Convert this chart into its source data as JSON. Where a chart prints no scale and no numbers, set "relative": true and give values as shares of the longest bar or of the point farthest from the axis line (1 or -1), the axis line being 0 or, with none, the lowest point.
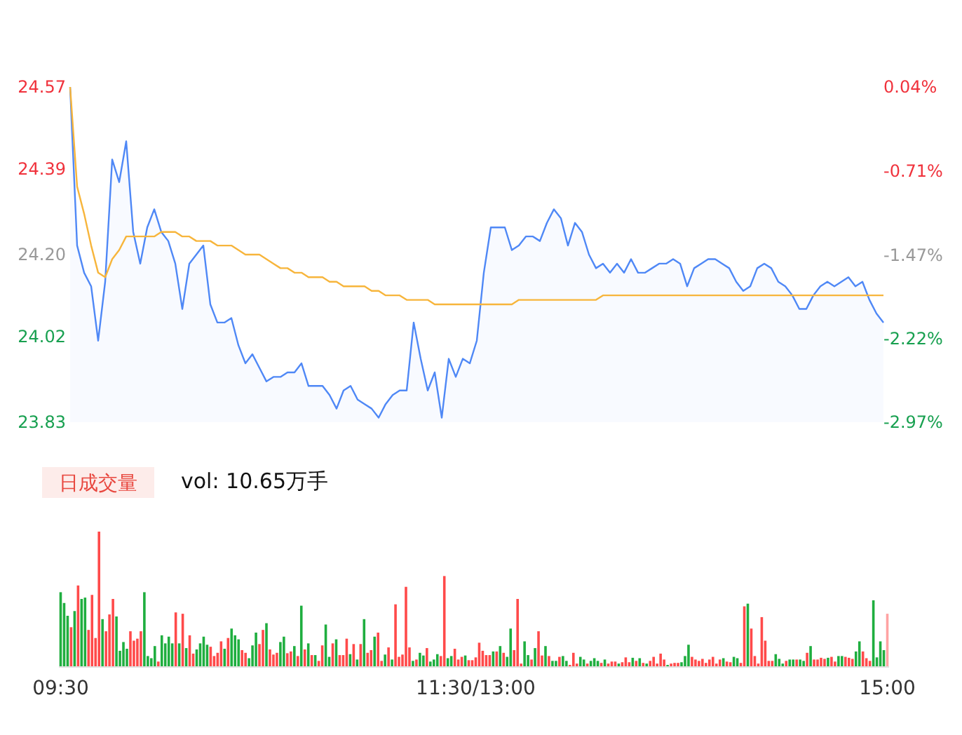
{
  "chart_data": [
    {
      "type": "line",
      "tick_labels": "y",
      "ylim": [
        23.83,
        24.57
      ],
      "yticks": [
        23.83,
        24.02,
        {
          "value": 24.2,
          "label": "24.20"
        },
        24.39,
        24.57
      ],
      "y2lim": [
        -2.97,
        0.04
      ],
      "y2ticks": [
        {
          "value": -2.97,
          "label": "-2.97%"
        },
        {
          "value": -2.22,
          "label": "-2.22%"
        },
        {
          "value": -1.47,
          "label": "-1.47%"
        },
        {
          "value": -0.71,
          "label": "-0.71%"
        },
        {
          "value": 0.04,
          "label": "0.04%"
        }
      ],
      "categories": [
        null,
        null,
        null,
        null,
        null,
        null,
        null,
        null,
        null,
        null,
        null,
        null,
        null,
        null,
        null,
        null,
        null,
        null,
        null,
        null,
        null,
        null,
        null,
        null,
        null,
        null,
        null,
        null,
        null,
        null,
        null,
        null,
        null,
        null,
        null,
        null,
        null,
        null,
        null,
        null,
        null,
        null,
        null,
        null,
        null,
        null,
        null,
        null,
        null,
        null,
        null,
        null,
        null,
        null,
        null,
        null,
        null,
        null,
        null,
        null,
        null,
        null,
        null,
        null,
        null,
        null,
        null,
        null,
        null,
        null,
        null,
        null,
        null,
        null,
        null,
        null,
        null,
        null,
        null,
        null,
        null,
        null,
        null,
        null,
        null,
        null,
        null,
        null,
        null,
        null,
        null,
        null,
        null,
        null,
        null,
        null,
        null,
        null,
        null,
        null,
        null,
        null,
        null,
        null,
        null,
        null,
        null,
        null,
        null,
        null,
        null,
        null,
        null,
        null,
        null,
        null,
        null
      ],
      "series": [
        {
          "type": "area",
          "color": "#4f88f6",
          "values": [
            24.57,
            24.22,
            24.16,
            24.13,
            24.01,
            24.14,
            24.41,
            24.36,
            24.45,
            24.25,
            24.18,
            24.26,
            24.3,
            24.25,
            24.23,
            24.18,
            24.08,
            24.18,
            24.2,
            24.22,
            24.09,
            24.05,
            24.05,
            24.06,
            24.0,
            23.96,
            23.98,
            23.95,
            23.92,
            23.93,
            23.93,
            23.94,
            23.94,
            23.96,
            23.91,
            23.91,
            23.91,
            23.89,
            23.86,
            23.9,
            23.91,
            23.88,
            23.87,
            23.86,
            23.84,
            23.87,
            23.89,
            23.9,
            23.9,
            24.05,
            23.97,
            23.9,
            23.94,
            23.84,
            23.97,
            23.93,
            23.97,
            23.96,
            24.01,
            24.16,
            24.26,
            24.26,
            24.26,
            24.21,
            24.22,
            24.24,
            24.24,
            24.23,
            24.27,
            24.3,
            24.28,
            24.22,
            24.27,
            24.25,
            24.2,
            24.17,
            24.18,
            24.16,
            24.18,
            24.16,
            24.19,
            24.16,
            24.16,
            24.17,
            24.18,
            24.18,
            24.19,
            24.18,
            24.13,
            24.17,
            24.18,
            24.19,
            24.19,
            24.18,
            24.17,
            24.14,
            24.12,
            24.13,
            24.17,
            24.18,
            24.17,
            24.14,
            24.13,
            24.11,
            24.08,
            24.08,
            24.11,
            24.13,
            24.14,
            24.13,
            24.14,
            24.15,
            24.13,
            24.14,
            24.1,
            24.07,
            24.05
          ]
        },
        {
          "type": "line",
          "color": "#f7b53b",
          "values": [
            24.57,
            24.35,
            24.29,
            24.22,
            24.16,
            24.15,
            24.19,
            24.21,
            24.24,
            24.24,
            24.24,
            24.24,
            24.24,
            24.25,
            24.25,
            24.25,
            24.24,
            24.24,
            24.23,
            24.23,
            24.23,
            24.22,
            24.22,
            24.22,
            24.21,
            24.2,
            24.2,
            24.2,
            24.19,
            24.18,
            24.17,
            24.17,
            24.16,
            24.16,
            24.15,
            24.15,
            24.15,
            24.14,
            24.14,
            24.13,
            24.13,
            24.13,
            24.13,
            24.12,
            24.12,
            24.11,
            24.11,
            24.11,
            24.1,
            24.1,
            24.1,
            24.1,
            24.09,
            24.09,
            24.09,
            24.09,
            24.09,
            24.09,
            24.09,
            24.09,
            24.09,
            24.09,
            24.09,
            24.09,
            24.1,
            24.1,
            24.1,
            24.1,
            24.1,
            24.1,
            24.1,
            24.1,
            24.1,
            24.1,
            24.1,
            24.1,
            24.11,
            24.11,
            24.11,
            24.11,
            24.11,
            24.11,
            24.11,
            24.11,
            24.11,
            24.11,
            24.11,
            24.11,
            24.11,
            24.11,
            24.11,
            24.11,
            24.11,
            24.11,
            24.11,
            24.11,
            24.11,
            24.11,
            24.11,
            24.11,
            24.11,
            24.11,
            24.11,
            24.11,
            24.11,
            24.11,
            24.11,
            24.11,
            24.11,
            24.11,
            24.11,
            24.11,
            24.11,
            24.11,
            24.11,
            24.11,
            24.11
          ]
        }
      ]
    },
    {
      "type": "bar",
      "title": "日成交量",
      "subtitle": "vol: 10.65万手",
      "relative": true,
      "categories": [
        "09:30",
        null,
        null,
        null,
        null,
        null,
        null,
        null,
        null,
        null,
        null,
        null,
        null,
        null,
        null,
        null,
        null,
        null,
        null,
        null,
        null,
        null,
        null,
        null,
        null,
        null,
        null,
        null,
        null,
        null,
        null,
        null,
        null,
        null,
        null,
        null,
        null,
        null,
        null,
        null,
        null,
        null,
        null,
        null,
        null,
        null,
        null,
        null,
        null,
        null,
        null,
        null,
        null,
        null,
        null,
        null,
        null,
        null,
        null,
        null,
        null,
        null,
        null,
        null,
        null,
        null,
        null,
        null,
        null,
        null,
        null,
        null,
        null,
        null,
        null,
        null,
        null,
        null,
        null,
        null,
        null,
        null,
        null,
        null,
        null,
        null,
        null,
        null,
        null,
        null,
        null,
        null,
        null,
        null,
        null,
        null,
        null,
        null,
        null,
        null,
        null,
        null,
        null,
        null,
        null,
        null,
        null,
        null,
        null,
        null,
        null,
        null,
        null,
        null,
        null,
        null,
        null,
        null,
        null,
        "11:30/13:00",
        null,
        null,
        null,
        null,
        null,
        null,
        null,
        null,
        null,
        null,
        null,
        null,
        null,
        null,
        null,
        null,
        null,
        null,
        null,
        null,
        null,
        null,
        null,
        null,
        null,
        null,
        null,
        null,
        null,
        null,
        null,
        null,
        null,
        null,
        null,
        null,
        null,
        null,
        null,
        null,
        null,
        null,
        null,
        null,
        null,
        null,
        null,
        null,
        null,
        null,
        null,
        null,
        null,
        null,
        null,
        null,
        null,
        null,
        null,
        null,
        null,
        null,
        null,
        null,
        null,
        null,
        null,
        null,
        null,
        null,
        null,
        null,
        null,
        null,
        null,
        null,
        null,
        null,
        null,
        null,
        null,
        null,
        null,
        null,
        null,
        null,
        null,
        null,
        null,
        null,
        null,
        null,
        null,
        null,
        null,
        null,
        null,
        null,
        null,
        null,
        null,
        null,
        null,
        null,
        null,
        null,
        null,
        null,
        null,
        null,
        null,
        null,
        null,
        null,
        null,
        null,
        null,
        "15:00"
      ],
      "values": [
        0.55,
        0.47,
        0.375,
        0.29,
        0.41,
        0.6,
        0.5,
        0.51,
        0.27,
        0.53,
        0.21,
        1,
        0.35,
        0.26,
        0.385,
        0.5,
        0.37,
        0.115,
        0.18,
        0.13,
        0.26,
        0.19,
        0.205,
        0.26,
        0.55,
        0.076,
        0.06,
        0.15,
        0.035,
        0.23,
        0.17,
        0.22,
        0.17,
        0.4,
        0.17,
        0.39,
        0.135,
        0.23,
        0.094,
        0.125,
        0.17,
        0.22,
        0.16,
        0.145,
        0.076,
        0.1,
        0.185,
        0.13,
        0.21,
        0.28,
        0.23,
        0.2,
        0.12,
        0.1,
        0.06,
        0.155,
        0.25,
        0.165,
        0.27,
        0.32,
        0.125,
        0.087,
        0.1,
        0.18,
        0.22,
        0.097,
        0.11,
        0.15,
        0.076,
        0.45,
        0.125,
        0.17,
        0.083,
        0.083,
        0.04,
        0.155,
        0.31,
        0.07,
        0.17,
        0.2,
        0.083,
        0.083,
        0.205,
        0.09,
        0.165,
        0.05,
        0.165,
        0.35,
        0.1,
        0.12,
        0.22,
        0.25,
        0.04,
        0.087,
        0.14,
        0.05,
        0.46,
        0.07,
        0.087,
        0.59,
        0.14,
        0.04,
        0.05,
        0.1,
        0.08,
        0.135,
        0.035,
        0.05,
        0.09,
        0.076,
        0.67,
        0.06,
        0.076,
        0.13,
        0.05,
        0.07,
        0.08,
        0.045,
        0.045,
        0.066,
        0.175,
        0.115,
        0.083,
        0.083,
        0.11,
        0.11,
        0.15,
        0.1,
        0.07,
        0.28,
        0.12,
        0.5,
        0.02,
        0.185,
        0.083,
        0.05,
        0.135,
        0.26,
        0.08,
        0.15,
        0.076,
        0.04,
        0.04,
        0.07,
        0.076,
        0.04,
        0.01,
        0.1,
        0.02,
        0.07,
        0.05,
        0.02,
        0.04,
        0.06,
        0.04,
        0.025,
        0.05,
        0.02,
        0.035,
        0.035,
        0.02,
        0.03,
        0.066,
        0.03,
        0.063,
        0.04,
        0.06,
        0.025,
        0.02,
        0.04,
        0.07,
        0.02,
        0.094,
        0.05,
        0.01,
        0.02,
        0.025,
        0.025,
        0.03,
        0.076,
        0.16,
        0.07,
        0.05,
        0.04,
        0.055,
        0.025,
        0.05,
        0.07,
        0.02,
        0.05,
        0.06,
        0.035,
        0.03,
        0.07,
        0.06,
        0.025,
        0.445,
        0.465,
        0.28,
        0.076,
        0.02,
        0.365,
        0.19,
        0.04,
        0.04,
        0.09,
        0.055,
        0.02,
        0.04,
        0.05,
        0.05,
        0.05,
        0.05,
        0.04,
        0.1,
        0.15,
        0.05,
        0.05,
        0.063,
        0.055,
        0.063,
        0.07,
        0.035,
        0.076,
        0.076,
        0.07,
        0.063,
        0.055,
        0.11,
        0.185,
        0.11,
        0.06,
        0.04,
        0.49,
        0.066,
        0.185,
        0.12,
        0.39
      ],
      "colors": [
        "#1fae3f",
        "#1fae3f",
        "#1fae3f",
        "#ff4a4a",
        "#1fae3f",
        "#ff4a4a",
        "#1fae3f",
        "#1fae3f",
        "#ff4a4a",
        "#ff4a4a",
        "#ff4a4a",
        "#ff4a4a",
        "#1fae3f",
        "#ff4a4a",
        "#ff4a4a",
        "#ff4a4a",
        "#1fae3f",
        "#1fae3f",
        "#1fae3f",
        "#1fae3f",
        "#ff4a4a",
        "#ff4a4a",
        "#ff4a4a",
        "#ff4a4a",
        "#1fae3f",
        "#1fae3f",
        "#1fae3f",
        "#1fae3f",
        "#ff4a4a",
        "#1fae3f",
        "#1fae3f",
        "#1fae3f",
        "#1fae3f",
        "#ff4a4a",
        "#1fae3f",
        "#ff4a4a",
        "#1fae3f",
        "#ff4a4a",
        "#ff4a4a",
        "#1fae3f",
        "#1fae3f",
        "#1fae3f",
        "#1fae3f",
        "#ff4a4a",
        "#ff4a4a",
        "#ff4a4a",
        "#ff4a4a",
        "#1fae3f",
        "#ff4a4a",
        "#1fae3f",
        "#1fae3f",
        "#1fae3f",
        "#ff4a4a",
        "#ff4a4a",
        "#1fae3f",
        "#1fae3f",
        "#1fae3f",
        "#ff4a4a",
        "#ff4a4a",
        "#1fae3f",
        "#ff4a4a",
        "#ff4a4a",
        "#ff4a4a",
        "#1fae3f",
        "#1fae3f",
        "#ff4a4a",
        "#ff4a4a",
        "#1fae3f",
        "#ff4a4a",
        "#1fae3f",
        "#ff4a4a",
        "#1fae3f",
        "#ff4a4a",
        "#1fae3f",
        "#ff4a4a",
        "#ff4a4a",
        "#1fae3f",
        "#1fae3f",
        "#ff4a4a",
        "#1fae3f",
        "#ff4a4a",
        "#ff4a4a",
        "#ff4a4a",
        "#1fae3f",
        "#ff4a4a",
        "#1fae3f",
        "#ff4a4a",
        "#1fae3f",
        "#ff4a4a",
        "#ff4a4a",
        "#1fae3f",
        "#ff4a4a",
        "#ff4a4a",
        "#1fae3f",
        "#ff4a4a",
        "#1fae3f",
        "#ff4a4a",
        "#ff4a4a",
        "#ff4a4a",
        "#ff4a4a",
        "#ff4a4a",
        "#1fae3f",
        "#ff4a4a",
        "#1fae3f",
        "#1fae3f",
        "#ff4a4a",
        "#1fae3f",
        "#1fae3f",
        "#1fae3f",
        "#ff4a4a",
        "#ff4a4a",
        "#1fae3f",
        "#1fae3f",
        "#ff4a4a",
        "#ff4a4a",
        "#ff4a4a",
        "#1fae3f",
        "#ff4a4a",
        "#ff4a4a",
        "#ff4a4a",
        "#ff4a4a",
        "#ff4a4a",
        "#ff4a4a",
        "#ff4a4a",
        "#1fae3f",
        "#ff4a4a",
        "#1fae3f",
        "#ff4a4a",
        "#1fae3f",
        "#1fae3f",
        "#ff4a4a",
        "#ff4a4a",
        "#ff4a4a",
        "#1fae3f",
        "#1fae3f",
        "#ff4a4a",
        "#1fae3f",
        "#ff4a4a",
        "#ff4a4a",
        "#1fae3f",
        "#ff4a4a",
        "#1fae3f",
        "#1fae3f",
        "#ff4a4a",
        "#1fae3f",
        "#1fae3f",
        "#ff4a4a",
        "#ff4a4a",
        "#ff4a4a",
        "#1fae3f",
        "#1fae3f",
        "#ff4a4a",
        "#1fae3f",
        "#1fae3f",
        "#1fae3f",
        "#ff4a4a",
        "#1fae3f",
        "#ff4a4a",
        "#ff4a4a",
        "#ff4a4a",
        "#1fae3f",
        "#ff4a4a",
        "#ff4a4a",
        "#ff4a4a",
        "#1fae3f",
        "#ff4a4a",
        "#1fae3f",
        "#ff4a4a",
        "#1fae3f",
        "#ff4a4a",
        "#ff4a4a",
        "#ff4a4a",
        "#ff4a4a",
        "#ff4a4a",
        "#1fae3f",
        "#ff4a4a",
        "#ff4a4a",
        "#ff4a4a",
        "#1fae3f",
        "#1fae3f",
        "#1fae3f",
        "#ff4a4a",
        "#ff4a4a",
        "#ff4a4a",
        "#ff4a4a",
        "#ff4a4a",
        "#ff4a4a",
        "#ff4a4a",
        "#ff4a4a",
        "#ff4a4a",
        "#1fae3f",
        "#ff4a4a",
        "#ff4a4a",
        "#1fae3f",
        "#1fae3f",
        "#ff4a4a",
        "#ff4a4a",
        "#1fae3f",
        "#ff4a4a",
        "#ff4a4a",
        "#ff4a4a",
        "#ff4a4a",
        "#ff4a4a",
        "#ff4a4a",
        "#ff4a4a",
        "#1fae3f",
        "#1fae3f",
        "#1fae3f",
        "#ff4a4a",
        "#1fae3f",
        "#1fae3f",
        "#ff4a4a",
        "#1fae3f",
        "#1fae3f",
        "#ff4a4a",
        "#1fae3f",
        "#ff4a4a",
        "#ff4a4a",
        "#ff4a4a",
        "#ff4a4a",
        "#1fae3f",
        "#ff4a4a",
        "#ff4a4a",
        "#1fae3f",
        "#1fae3f",
        "#ff4a4a",
        "#ff4a4a",
        "#ff4a4a",
        "#1fae3f",
        "#1fae3f",
        "#ff4a4a",
        "#ff4a4a",
        "#ff4a4a",
        "#1fae3f",
        "#1fae3f",
        "#1fae3f",
        "#1fae3f",
        "#ffa3a3"
      ]
    }
  ]
}
